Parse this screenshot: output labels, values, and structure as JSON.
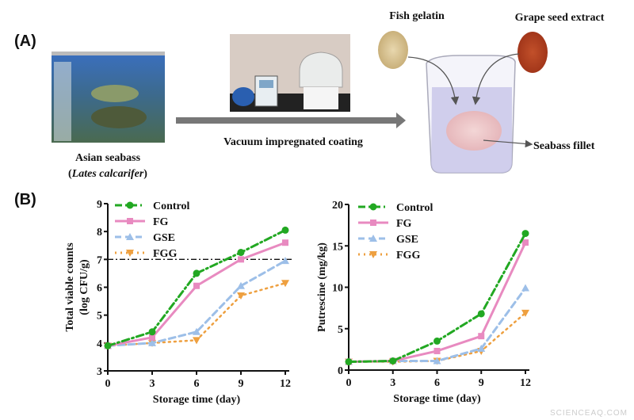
{
  "panel_a": {
    "label": "(A)",
    "fish_caption_line1": "Asian seabass",
    "fish_caption_open": "(",
    "fish_caption_species": "Lates calcarifer",
    "fish_caption_close": ")",
    "process_label": "Vacuum impregnated coating",
    "fish_gelatin": "Fish gelatin",
    "grape_seed_extract": "Grape seed extract",
    "seabass_fillet": "Seabass fillet"
  },
  "panel_b": {
    "label": "(B)"
  },
  "watermark": "SCIENCEAQ.COM",
  "chart_data": [
    {
      "type": "line",
      "xlabel": "Storage time (day)",
      "ylabel_line1": "Total viable counts",
      "ylabel_line2": "(log CFU/g)",
      "x": [
        0,
        3,
        6,
        9,
        12
      ],
      "xticks": [
        "0",
        "3",
        "6",
        "9",
        "12"
      ],
      "yticks": [
        "3",
        "4",
        "5",
        "6",
        "7",
        "8",
        "9"
      ],
      "xlim": [
        0,
        12
      ],
      "ylim": [
        3,
        9
      ],
      "reference_line": 7,
      "legend": "top-left",
      "series": [
        {
          "name": "Control",
          "values": [
            3.9,
            4.4,
            6.5,
            7.25,
            8.05
          ],
          "color": "#22a822",
          "marker": "circle",
          "style": "dash-dot"
        },
        {
          "name": "FG",
          "values": [
            3.9,
            4.2,
            6.05,
            7.0,
            7.6
          ],
          "color": "#e88ac0",
          "marker": "square",
          "style": "solid"
        },
        {
          "name": "GSE",
          "values": [
            3.9,
            4.0,
            4.4,
            6.05,
            6.95
          ],
          "color": "#9dbfe8",
          "marker": "triangle-up",
          "style": "dashed"
        },
        {
          "name": "FGG",
          "values": [
            3.9,
            4.0,
            4.1,
            5.7,
            6.15
          ],
          "color": "#eea040",
          "marker": "triangle-down",
          "style": "dotted"
        }
      ]
    },
    {
      "type": "line",
      "xlabel": "Storage time (day)",
      "ylabel_line1": "Putrescine (mg/kg)",
      "x": [
        0,
        3,
        6,
        9,
        12
      ],
      "xticks": [
        "0",
        "3",
        "6",
        "9",
        "12"
      ],
      "yticks": [
        "0",
        "5",
        "10",
        "15",
        "20"
      ],
      "xlim": [
        0,
        12
      ],
      "ylim": [
        0,
        20
      ],
      "legend": "top-left",
      "series": [
        {
          "name": "Control",
          "values": [
            1.0,
            1.1,
            3.5,
            6.8,
            16.5
          ],
          "color": "#22a822",
          "marker": "circle",
          "style": "dash-dot"
        },
        {
          "name": "FG",
          "values": [
            1.0,
            1.1,
            2.3,
            4.1,
            15.4
          ],
          "color": "#e88ac0",
          "marker": "square",
          "style": "solid"
        },
        {
          "name": "GSE",
          "values": [
            1.0,
            1.1,
            1.1,
            2.6,
            9.9
          ],
          "color": "#9dbfe8",
          "marker": "triangle-up",
          "style": "dashed"
        },
        {
          "name": "FGG",
          "values": [
            1.0,
            1.0,
            1.1,
            2.3,
            6.9
          ],
          "color": "#eea040",
          "marker": "triangle-down",
          "style": "dotted"
        }
      ]
    }
  ]
}
